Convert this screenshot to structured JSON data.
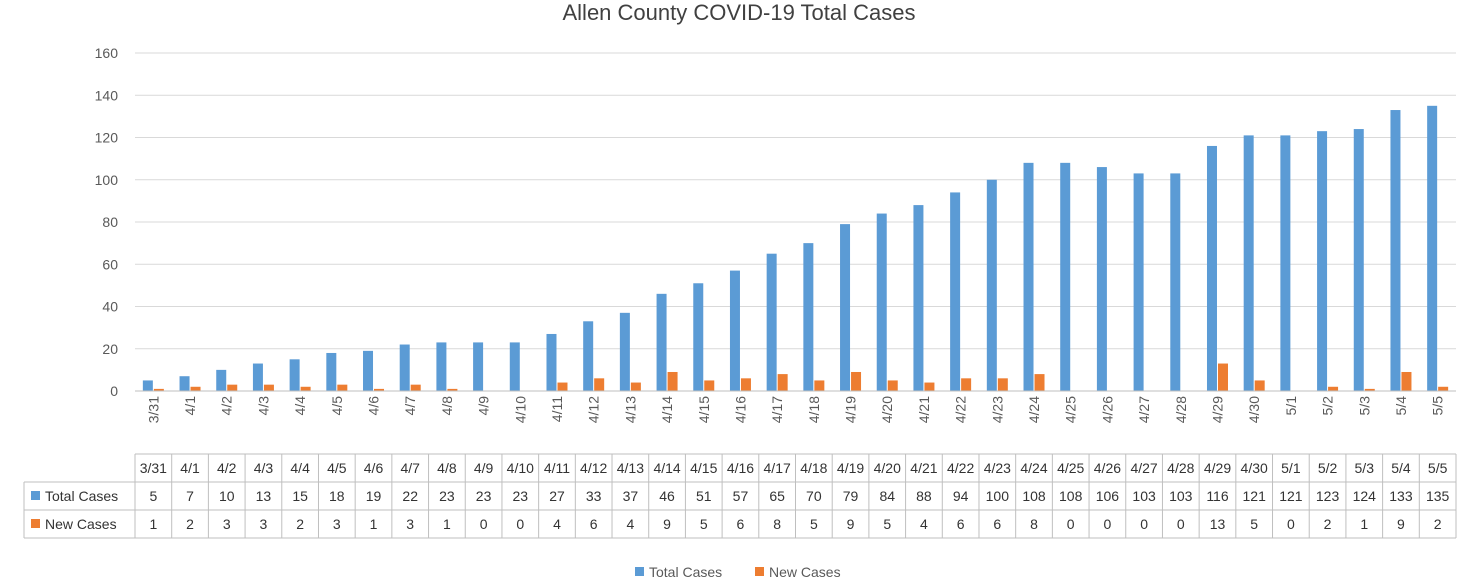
{
  "chart_data": {
    "type": "bar",
    "title": "Allen County COVID-19 Total Cases",
    "xlabel": "",
    "ylabel": "",
    "ylim": [
      0,
      160
    ],
    "yticks": [
      0,
      20,
      40,
      60,
      80,
      100,
      120,
      140,
      160
    ],
    "grid": true,
    "legend_position": "bottom",
    "data_table": true,
    "categories": [
      "3/31",
      "4/1",
      "4/2",
      "4/3",
      "4/4",
      "4/5",
      "4/6",
      "4/7",
      "4/8",
      "4/9",
      "4/10",
      "4/11",
      "4/12",
      "4/13",
      "4/14",
      "4/15",
      "4/16",
      "4/17",
      "4/18",
      "4/19",
      "4/20",
      "4/21",
      "4/22",
      "4/23",
      "4/24",
      "4/25",
      "4/26",
      "4/27",
      "4/28",
      "4/29",
      "4/30",
      "5/1",
      "5/2",
      "5/3",
      "5/4",
      "5/5"
    ],
    "series": [
      {
        "name": "Total Cases",
        "color": "#5b9bd5",
        "values": [
          5,
          7,
          10,
          13,
          15,
          18,
          19,
          22,
          23,
          23,
          23,
          27,
          33,
          37,
          46,
          51,
          57,
          65,
          70,
          79,
          84,
          88,
          94,
          100,
          108,
          108,
          106,
          103,
          103,
          116,
          121,
          121,
          123,
          124,
          133,
          135
        ]
      },
      {
        "name": "New Cases",
        "color": "#ed7d31",
        "values": [
          1,
          2,
          3,
          3,
          2,
          3,
          1,
          3,
          1,
          0,
          0,
          4,
          6,
          4,
          9,
          5,
          6,
          8,
          5,
          9,
          5,
          4,
          6,
          6,
          8,
          0,
          0,
          0,
          0,
          13,
          5,
          0,
          2,
          1,
          9,
          2
        ]
      }
    ]
  }
}
